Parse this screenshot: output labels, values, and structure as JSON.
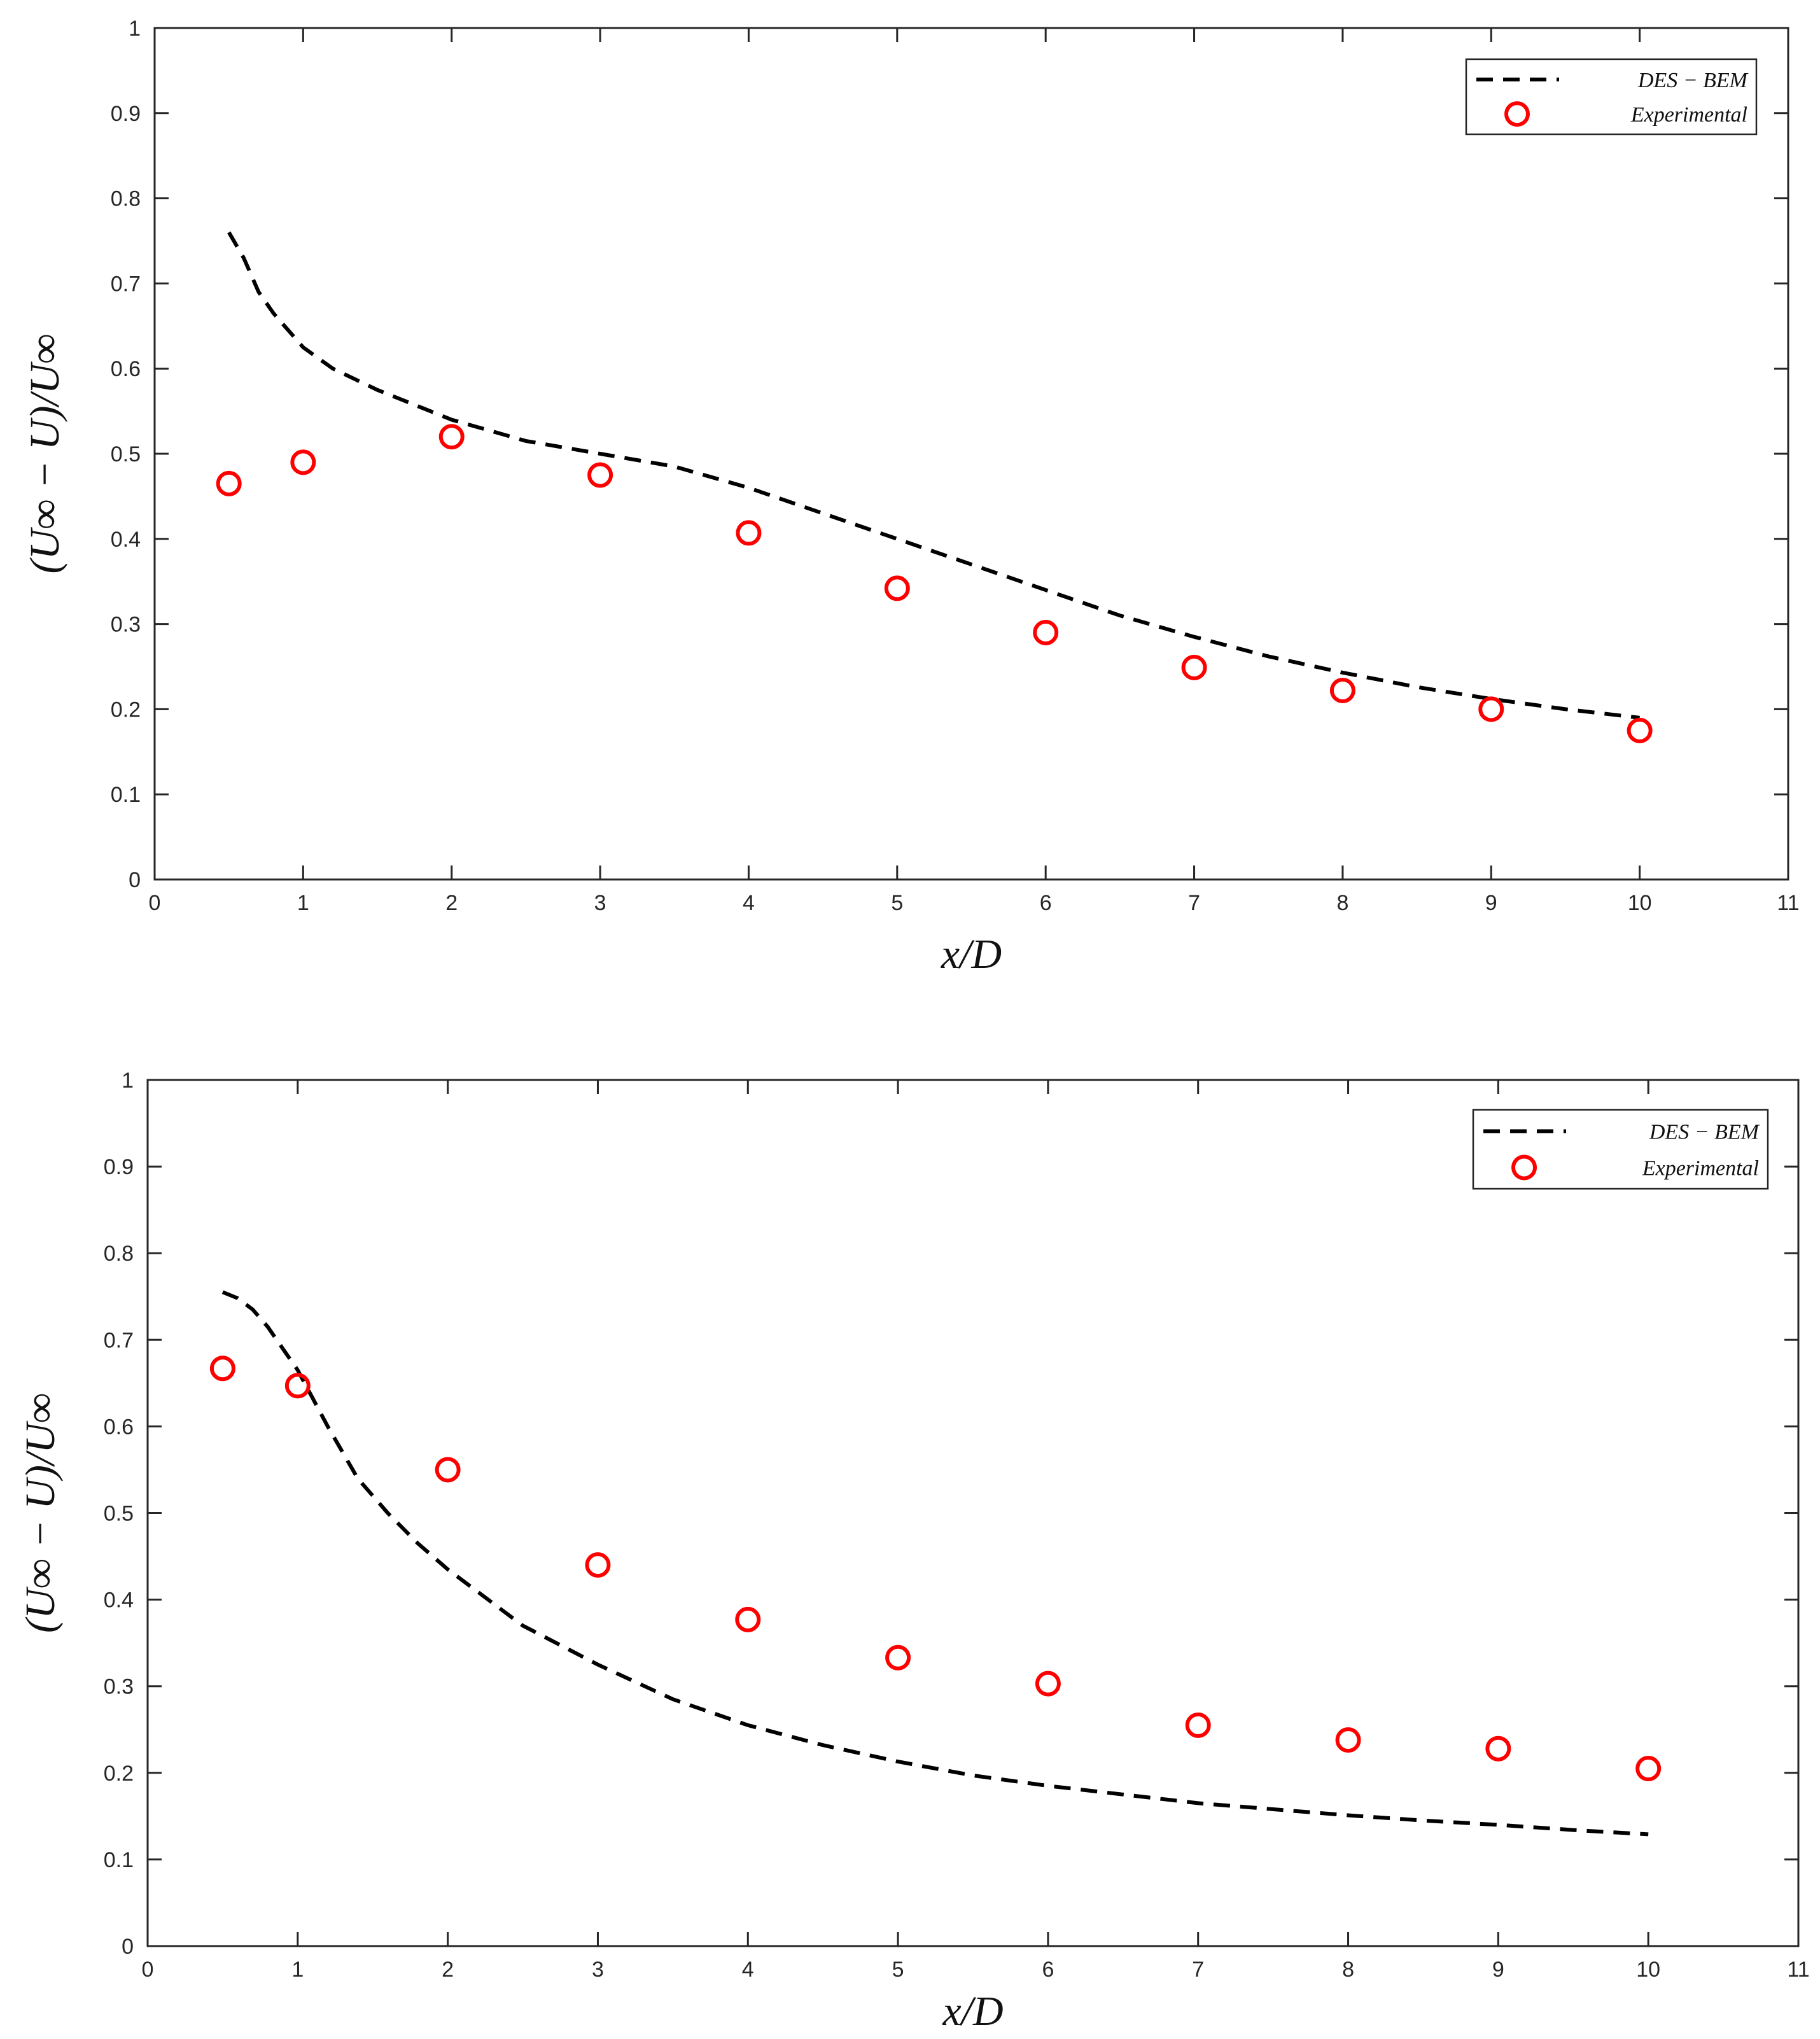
{
  "colors": {
    "model": "#000000",
    "experimental": "#ff0000",
    "axes": "#262626"
  },
  "chart_data": [
    {
      "type": "line",
      "name": "top-panel",
      "xlabel": "x/D",
      "ylabel": "(U∞ − U)/U∞",
      "xlim": [
        0,
        11
      ],
      "ylim": [
        0,
        1
      ],
      "xticks": [
        "0",
        "1",
        "2",
        "3",
        "4",
        "5",
        "6",
        "7",
        "8",
        "9",
        "10",
        "11"
      ],
      "yticks": [
        "0",
        "0.1",
        "0.2",
        "0.3",
        "0.4",
        "0.5",
        "0.6",
        "0.7",
        "0.8",
        "0.9",
        "1"
      ],
      "grid": false,
      "legend_position": "top-right",
      "series": [
        {
          "name": "DES − BEM",
          "style": "dashed-line",
          "x": [
            0.5,
            0.6,
            0.7,
            0.8,
            1.0,
            1.2,
            1.5,
            2.0,
            2.5,
            3.0,
            3.5,
            4.0,
            4.5,
            5.0,
            5.5,
            6.0,
            6.5,
            7.0,
            7.5,
            8.0,
            8.5,
            9.0,
            9.5,
            10.0
          ],
          "y": [
            0.76,
            0.73,
            0.69,
            0.665,
            0.625,
            0.6,
            0.575,
            0.54,
            0.515,
            0.5,
            0.485,
            0.46,
            0.43,
            0.4,
            0.37,
            0.34,
            0.31,
            0.285,
            0.262,
            0.243,
            0.226,
            0.212,
            0.2,
            0.19
          ]
        },
        {
          "name": "Experimental",
          "style": "circle-markers",
          "x": [
            0.5,
            1,
            2,
            3,
            4,
            5,
            6,
            7,
            8,
            9,
            10
          ],
          "y": [
            0.465,
            0.49,
            0.52,
            0.475,
            0.407,
            0.342,
            0.29,
            0.249,
            0.222,
            0.2,
            0.175
          ]
        }
      ]
    },
    {
      "type": "line",
      "name": "bottom-panel",
      "xlabel": "x/D",
      "ylabel": "(U∞ − U)/U∞",
      "xlim": [
        0,
        11
      ],
      "ylim": [
        0,
        1
      ],
      "xticks": [
        "0",
        "1",
        "2",
        "3",
        "4",
        "5",
        "6",
        "7",
        "8",
        "9",
        "10",
        "11"
      ],
      "yticks": [
        "0",
        "0.1",
        "0.2",
        "0.3",
        "0.4",
        "0.5",
        "0.6",
        "0.7",
        "0.8",
        "0.9",
        "1"
      ],
      "grid": false,
      "legend_position": "top-right",
      "series": [
        {
          "name": "DES − BEM",
          "style": "dashed-line",
          "x": [
            0.5,
            0.6,
            0.7,
            0.8,
            0.9,
            1.0,
            1.2,
            1.4,
            1.6,
            1.8,
            2.0,
            2.5,
            3.0,
            3.5,
            4.0,
            4.5,
            5.0,
            5.5,
            6.0,
            6.5,
            7.0,
            7.5,
            8.0,
            8.5,
            9.0,
            9.5,
            10.0
          ],
          "y": [
            0.755,
            0.748,
            0.735,
            0.715,
            0.69,
            0.665,
            0.6,
            0.54,
            0.5,
            0.465,
            0.435,
            0.37,
            0.325,
            0.285,
            0.255,
            0.232,
            0.213,
            0.197,
            0.185,
            0.175,
            0.165,
            0.158,
            0.151,
            0.145,
            0.14,
            0.134,
            0.129
          ]
        },
        {
          "name": "Experimental",
          "style": "circle-markers",
          "x": [
            0.5,
            1,
            2,
            3,
            4,
            5,
            6,
            7,
            8,
            9,
            10
          ],
          "y": [
            0.667,
            0.647,
            0.55,
            0.44,
            0.377,
            0.333,
            0.303,
            0.255,
            0.238,
            0.228,
            0.205
          ]
        }
      ]
    }
  ]
}
